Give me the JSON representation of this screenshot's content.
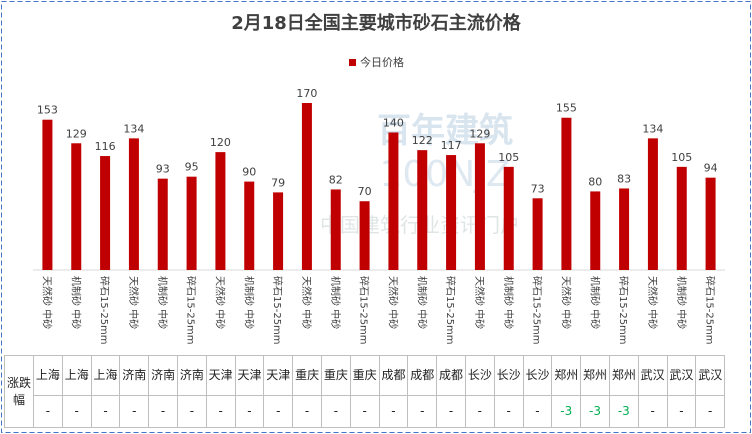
{
  "chart_data": {
    "type": "bar",
    "title": "2月18日全国主要城市砂石主流价格",
    "legend": "今日价格",
    "legend_position": "top",
    "color": "#c00000",
    "categories": [
      "天然砂 中砂",
      "机制砂 中砂",
      "碎石15-25mm",
      "天然砂 中砂",
      "机制砂 中砂",
      "碎石15-25mm",
      "天然砂 中砂",
      "机制砂 中砂",
      "碎石15-25mm",
      "天然砂 中砂",
      "机制砂 中砂",
      "碎石15-25mm",
      "天然砂 中砂",
      "机制砂 中砂",
      "碎石15-25mm",
      "天然砂 中砂",
      "机制砂 中砂",
      "碎石15-25mm",
      "天然砂 中砂",
      "机制砂 中砂",
      "碎石15-25mm",
      "天然砂 中砂",
      "机制砂 中砂",
      "碎石15-25mm"
    ],
    "values": [
      153,
      129,
      116,
      134,
      93,
      95,
      120,
      90,
      79,
      170,
      82,
      70,
      140,
      122,
      117,
      129,
      105,
      73,
      155,
      80,
      83,
      134,
      105,
      94
    ]
  },
  "watermark": [
    "百年建筑",
    "100NJZ",
    "中国建筑行业资讯门户"
  ],
  "table": {
    "row_header": "涨跌幅",
    "down_color": "#00b050",
    "cities": [
      "上海",
      "上海",
      "上海",
      "济南",
      "济南",
      "济南",
      "天津",
      "天津",
      "天津",
      "重庆",
      "重庆",
      "重庆",
      "成都",
      "成都",
      "成都",
      "长沙",
      "长沙",
      "长沙",
      "郑州",
      "郑州",
      "郑州",
      "武汉",
      "武汉",
      "武汉"
    ],
    "changes": [
      "-",
      "-",
      "-",
      "-",
      "-",
      "-",
      "-",
      "-",
      "-",
      "-",
      "-",
      "-",
      "-",
      "-",
      "-",
      "-",
      "-",
      "-",
      "-3",
      "-3",
      "-3",
      "-",
      "-",
      "-"
    ]
  }
}
